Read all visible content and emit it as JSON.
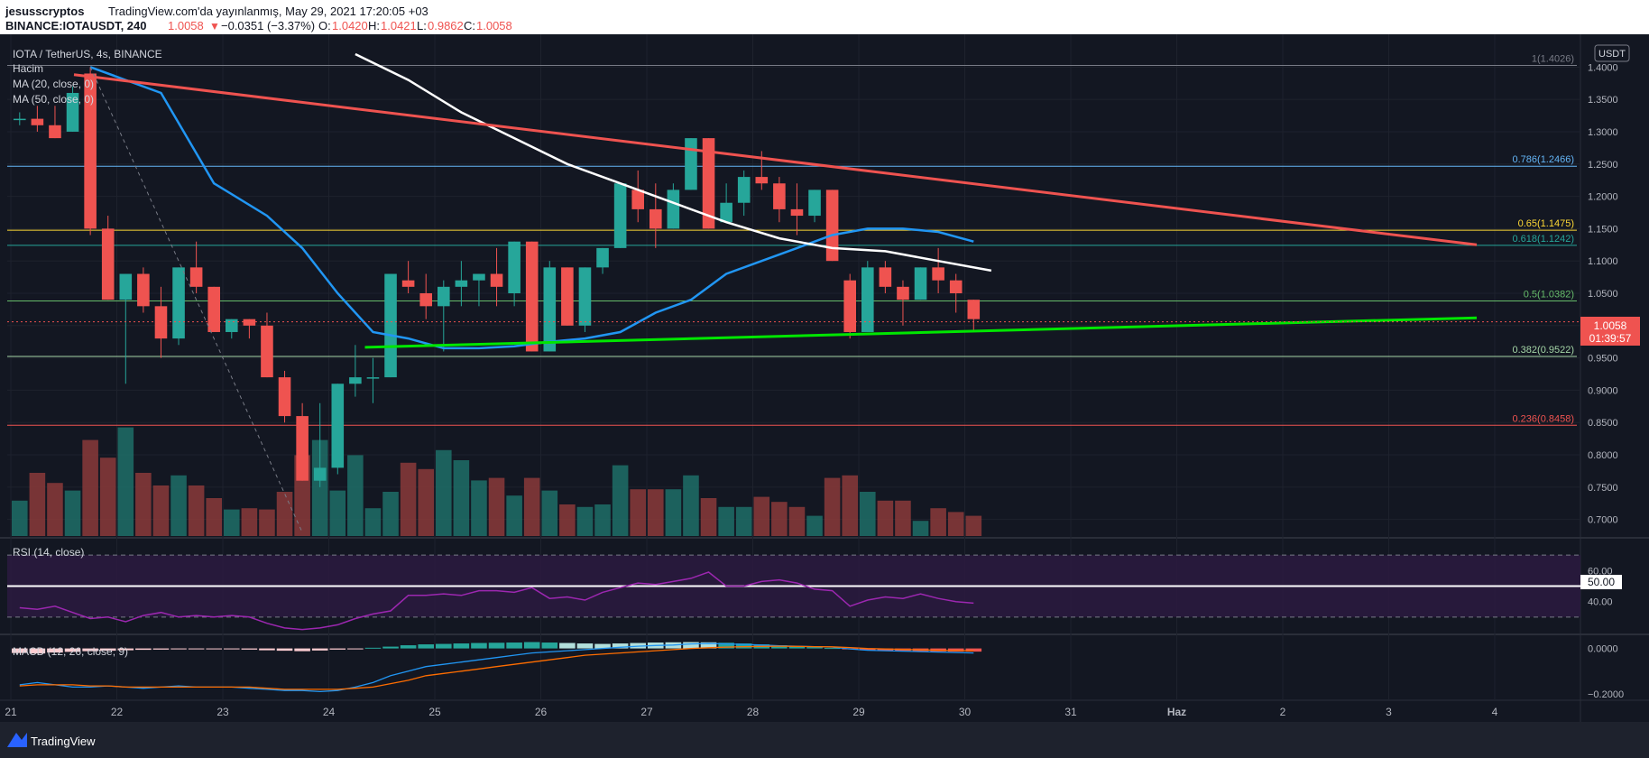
{
  "header": {
    "author": "jesusscryptos",
    "published": "TradingView.com'da yayınlanmış, May 29, 2021 17:20:05 +03",
    "symbol_line_prefix": "BINANCE:IOTAUSDT, 240",
    "price": "1.0058",
    "change_arrow": "▼",
    "change": "−0.0351 (−3.37%)",
    "o_label": "O:",
    "o_value": "1.0420",
    "h_label": "H:",
    "h_value": "1.0421",
    "l_label": "L:",
    "l_value": "0.9862",
    "c_label": "C:",
    "c_value": "1.0058"
  },
  "legend": {
    "title": "IOTA / TetherUS, 4s, BINANCE",
    "volume": "Hacim",
    "ma20": "MA (20, close, 0)",
    "ma50": "MA (50, close, 0)",
    "rsi": "RSI (14, close)",
    "macd": "MACD (12, 26, close, 9)"
  },
  "axis": {
    "currency": "USDT",
    "last_price": "1.0058",
    "countdown": "01:39:57",
    "rsi_mid_label": "50.00",
    "macd_min_label": "−0.2000"
  },
  "footer": {
    "brand": "TradingView"
  },
  "colors": {
    "background": "#131722",
    "up": "#26a69a",
    "down": "#ef5350",
    "ma20": "#2196f3",
    "ma50": "#ffffff",
    "trend_resistance": "#ef5350",
    "trend_support": "#00e600",
    "rsi": "#9c27b0"
  },
  "chart_data": {
    "type": "candlestick",
    "title": "IOTA / TetherUS, 4s, BINANCE",
    "timeframe": "240",
    "ylim": [
      0.68,
      1.42
    ],
    "price_ticks": [
      "0.7000",
      "0.7500",
      "0.8000",
      "0.8500",
      "0.9000",
      "0.9500",
      "1.0000",
      "1.0500",
      "1.1000",
      "1.1500",
      "1.2000",
      "1.2500",
      "1.3000",
      "1.3500",
      "1.4000"
    ],
    "x_labels": [
      "21",
      "22",
      "23",
      "24",
      "25",
      "26",
      "27",
      "28",
      "29",
      "30",
      "31",
      "Haz",
      "2",
      "3",
      "4"
    ],
    "candles": [
      [
        1.32,
        1.33,
        1.31,
        1.32
      ],
      [
        1.32,
        1.34,
        1.3,
        1.31
      ],
      [
        1.31,
        1.34,
        1.29,
        1.29
      ],
      [
        1.3,
        1.37,
        1.3,
        1.36
      ],
      [
        1.39,
        1.4,
        1.14,
        1.15
      ],
      [
        1.15,
        1.17,
        1.04,
        1.04
      ],
      [
        1.04,
        1.08,
        0.91,
        1.08
      ],
      [
        1.08,
        1.09,
        1.02,
        1.03
      ],
      [
        1.03,
        1.06,
        0.95,
        0.98
      ],
      [
        0.98,
        1.09,
        0.97,
        1.09
      ],
      [
        1.09,
        1.13,
        1.05,
        1.06
      ],
      [
        1.06,
        1.06,
        0.99,
        0.99
      ],
      [
        0.99,
        1.01,
        0.98,
        1.01
      ],
      [
        1.01,
        1.01,
        0.98,
        1.0
      ],
      [
        1.0,
        1.02,
        0.92,
        0.92
      ],
      [
        0.92,
        0.93,
        0.85,
        0.86
      ],
      [
        0.86,
        0.88,
        0.76,
        0.76
      ],
      [
        0.76,
        0.88,
        0.75,
        0.78
      ],
      [
        0.78,
        0.91,
        0.77,
        0.91
      ],
      [
        0.91,
        0.97,
        0.89,
        0.92
      ],
      [
        0.92,
        0.95,
        0.88,
        0.92
      ],
      [
        0.92,
        1.08,
        0.92,
        1.08
      ],
      [
        1.07,
        1.1,
        1.05,
        1.06
      ],
      [
        1.05,
        1.08,
        1.01,
        1.03
      ],
      [
        1.03,
        1.07,
        0.96,
        1.06
      ],
      [
        1.06,
        1.1,
        1.03,
        1.07
      ],
      [
        1.07,
        1.08,
        1.03,
        1.08
      ],
      [
        1.08,
        1.12,
        1.03,
        1.06
      ],
      [
        1.05,
        1.13,
        1.03,
        1.13
      ],
      [
        1.13,
        1.13,
        0.96,
        0.96
      ],
      [
        0.96,
        1.1,
        0.96,
        1.09
      ],
      [
        1.09,
        1.09,
        1.0,
        1.0
      ],
      [
        1.0,
        1.09,
        0.99,
        1.09
      ],
      [
        1.09,
        1.12,
        1.08,
        1.12
      ],
      [
        1.12,
        1.22,
        1.12,
        1.22
      ],
      [
        1.21,
        1.24,
        1.16,
        1.18
      ],
      [
        1.18,
        1.22,
        1.12,
        1.15
      ],
      [
        1.15,
        1.22,
        1.15,
        1.21
      ],
      [
        1.21,
        1.29,
        1.21,
        1.29
      ],
      [
        1.29,
        1.29,
        1.15,
        1.15
      ],
      [
        1.16,
        1.22,
        1.16,
        1.19
      ],
      [
        1.19,
        1.24,
        1.17,
        1.23
      ],
      [
        1.23,
        1.27,
        1.21,
        1.22
      ],
      [
        1.22,
        1.23,
        1.16,
        1.18
      ],
      [
        1.18,
        1.22,
        1.14,
        1.17
      ],
      [
        1.17,
        1.21,
        1.16,
        1.21
      ],
      [
        1.21,
        1.21,
        1.1,
        1.1
      ],
      [
        1.07,
        1.08,
        0.98,
        0.99
      ],
      [
        0.99,
        1.1,
        0.99,
        1.09
      ],
      [
        1.09,
        1.1,
        1.05,
        1.06
      ],
      [
        1.06,
        1.07,
        1.0,
        1.04
      ],
      [
        1.04,
        1.09,
        1.04,
        1.09
      ],
      [
        1.09,
        1.12,
        1.05,
        1.07
      ],
      [
        1.07,
        1.08,
        1.02,
        1.05
      ],
      [
        1.04,
        1.04,
        0.99,
        1.01
      ]
    ],
    "volume_levels": [
      0.28,
      0.5,
      0.42,
      0.36,
      0.76,
      0.62,
      0.86,
      0.5,
      0.4,
      0.48,
      0.4,
      0.3,
      0.21,
      0.22,
      0.21,
      0.35,
      0.64,
      0.76,
      0.36,
      0.64,
      0.22,
      0.35,
      0.58,
      0.53,
      0.68,
      0.6,
      0.44,
      0.46,
      0.32,
      0.46,
      0.36,
      0.25,
      0.23,
      0.25,
      0.56,
      0.37,
      0.37,
      0.37,
      0.48,
      0.3,
      0.23,
      0.23,
      0.31,
      0.27,
      0.23,
      0.16,
      0.46,
      0.48,
      0.35,
      0.28,
      0.28,
      0.12,
      0.22,
      0.19,
      0.16
    ],
    "moving_averages": [
      {
        "name": "MA (20, close, 0)",
        "points": [
          [
            4,
            1.4
          ],
          [
            8,
            1.36
          ],
          [
            11,
            1.22
          ],
          [
            14,
            1.17
          ],
          [
            16,
            1.12
          ],
          [
            18,
            1.05
          ],
          [
            20,
            0.99
          ],
          [
            22,
            0.98
          ],
          [
            24,
            0.965
          ],
          [
            26,
            0.965
          ],
          [
            28,
            0.968
          ],
          [
            30,
            0.975
          ],
          [
            32,
            0.98
          ],
          [
            34,
            0.99
          ],
          [
            36,
            1.02
          ],
          [
            38,
            1.04
          ],
          [
            40,
            1.08
          ],
          [
            42,
            1.1
          ],
          [
            44,
            1.12
          ],
          [
            46,
            1.14
          ],
          [
            48,
            1.15
          ],
          [
            50,
            1.15
          ],
          [
            52,
            1.145
          ],
          [
            54,
            1.13
          ]
        ]
      },
      {
        "name": "MA (50, close, 0)",
        "points": [
          [
            19,
            1.42
          ],
          [
            22,
            1.38
          ],
          [
            25,
            1.33
          ],
          [
            28,
            1.29
          ],
          [
            31,
            1.25
          ],
          [
            34,
            1.22
          ],
          [
            37,
            1.19
          ],
          [
            40,
            1.16
          ],
          [
            43,
            1.135
          ],
          [
            46,
            1.12
          ],
          [
            49,
            1.115
          ],
          [
            52,
            1.1
          ],
          [
            55,
            1.085
          ]
        ]
      }
    ],
    "rsi": {
      "label": "RSI (14, close)",
      "levels": [
        70,
        50,
        30
      ],
      "range": [
        20,
        80
      ],
      "values": [
        36,
        35,
        37,
        33,
        29,
        30,
        27,
        31,
        33,
        30,
        31,
        30,
        31,
        30,
        26,
        23,
        22,
        23,
        25,
        29,
        32,
        34,
        44,
        44,
        45,
        44,
        47,
        47,
        46,
        49,
        42,
        43,
        41,
        46,
        49,
        52,
        51,
        53,
        55,
        59,
        50,
        50,
        53,
        54,
        52,
        48,
        47,
        37,
        41,
        43,
        42,
        45,
        42,
        40,
        39
      ]
    },
    "macd": {
      "label": "MACD (12, 26, close, 9)",
      "ylim": [
        -0.22,
        0.05
      ],
      "ticks": [
        "0.0000",
        "−0.2000"
      ],
      "histogram": [
        -0.02,
        -0.022,
        -0.018,
        -0.015,
        -0.012,
        -0.01,
        -0.008,
        -0.006,
        -0.005,
        -0.004,
        -0.003,
        -0.002,
        -0.003,
        -0.005,
        -0.008,
        -0.01,
        -0.012,
        -0.009,
        -0.005,
        -0.002,
        0.003,
        0.008,
        0.014,
        0.018,
        0.02,
        0.022,
        0.024,
        0.025,
        0.026,
        0.028,
        0.026,
        0.024,
        0.022,
        0.02,
        0.022,
        0.024,
        0.026,
        0.027,
        0.028,
        0.027,
        0.025,
        0.022,
        0.018,
        0.014,
        0.01,
        0.006,
        0.002,
        -0.004,
        -0.008,
        -0.01,
        -0.011,
        -0.012,
        -0.013,
        -0.014,
        -0.014
      ],
      "macd_line": [
        -0.16,
        -0.15,
        -0.16,
        -0.17,
        -0.17,
        -0.165,
        -0.17,
        -0.175,
        -0.17,
        -0.165,
        -0.17,
        -0.17,
        -0.17,
        -0.175,
        -0.18,
        -0.185,
        -0.185,
        -0.19,
        -0.185,
        -0.17,
        -0.15,
        -0.12,
        -0.1,
        -0.08,
        -0.07,
        -0.06,
        -0.05,
        -0.04,
        -0.03,
        -0.02,
        -0.015,
        -0.01,
        -0.005,
        0.0,
        0.005,
        0.01,
        0.013,
        0.015,
        0.02,
        0.022,
        0.02,
        0.018,
        0.015,
        0.012,
        0.01,
        0.008,
        0.006,
        -0.002,
        -0.008,
        -0.01,
        -0.012,
        -0.014,
        -0.016,
        -0.018,
        -0.02
      ],
      "signal_line": [
        -0.165,
        -0.16,
        -0.16,
        -0.16,
        -0.165,
        -0.165,
        -0.17,
        -0.17,
        -0.17,
        -0.17,
        -0.17,
        -0.17,
        -0.17,
        -0.17,
        -0.175,
        -0.18,
        -0.18,
        -0.18,
        -0.18,
        -0.175,
        -0.17,
        -0.155,
        -0.14,
        -0.12,
        -0.11,
        -0.1,
        -0.09,
        -0.08,
        -0.07,
        -0.06,
        -0.05,
        -0.04,
        -0.03,
        -0.025,
        -0.02,
        -0.015,
        -0.01,
        -0.005,
        0.0,
        0.003,
        0.006,
        0.008,
        0.009,
        0.01,
        0.009,
        0.008,
        0.007,
        0.004,
        0.0,
        -0.002,
        -0.004,
        -0.006,
        -0.008,
        -0.009,
        -0.01
      ]
    },
    "fibonacci": [
      {
        "label": "1(1.4026)",
        "value": 1.4026,
        "color": "#787b86"
      },
      {
        "label": "0.786(1.2466)",
        "value": 1.2466,
        "color": "#64b5f6"
      },
      {
        "label": "0.65(1.1475)",
        "value": 1.1475,
        "color": "#fdd835"
      },
      {
        "label": "0.618(1.1242)",
        "value": 1.1242,
        "color": "#26a69a"
      },
      {
        "label": "0.5(1.0382)",
        "value": 1.0382,
        "color": "#66bb6a"
      },
      {
        "label": "0.382(0.9522)",
        "value": 0.9522,
        "color": "#a5d6a7"
      },
      {
        "label": "0.236(0.8458)",
        "value": 0.8458,
        "color": "#ef5350"
      }
    ],
    "trendlines": [
      {
        "name": "resistance",
        "from": {
          "day": "21",
          "price": 1.4
        },
        "to": {
          "day": "4",
          "price": 1.125
        }
      },
      {
        "name": "support",
        "from": {
          "day": "24",
          "price": 0.965
        },
        "to": {
          "day": "4",
          "price": 1.012
        }
      }
    ]
  }
}
